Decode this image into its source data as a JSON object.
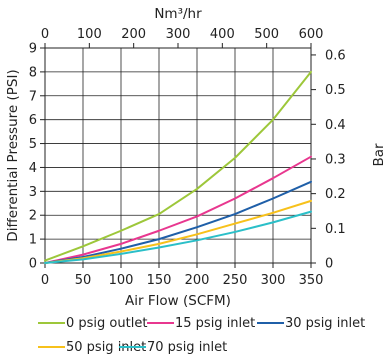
{
  "chart_data": {
    "type": "line",
    "xlabel": "Air Flow (SCFM)",
    "ylabel": "Differential Pressure (PSI)",
    "x2label": "Nm³/hr",
    "y2label": "Bar",
    "xlim": [
      0,
      350
    ],
    "ylim": [
      0,
      9
    ],
    "x2lim": [
      0,
      600
    ],
    "y2lim": [
      0,
      0.62
    ],
    "x_ticks": [
      "0",
      "50",
      "100",
      "150",
      "200",
      "250",
      "300",
      "350"
    ],
    "y_ticks": [
      "0",
      "1",
      "2",
      "3",
      "4",
      "5",
      "6",
      "7",
      "8",
      "9"
    ],
    "x2_ticks": [
      "0",
      "100",
      "200",
      "300",
      "400",
      "500",
      "600"
    ],
    "y2_ticks": [
      "0",
      "0.1",
      "0.2",
      "0.3",
      "0.4",
      "0.5",
      "0.6"
    ],
    "grid": true,
    "legend_position": "bottom",
    "series": [
      {
        "name": "0 psig outlet",
        "color": "#9dc73a",
        "x": [
          0,
          50,
          100,
          150,
          200,
          250,
          300,
          350
        ],
        "y": [
          0.1,
          0.7,
          1.35,
          2.05,
          3.1,
          4.4,
          6.0,
          8.0
        ]
      },
      {
        "name": "15 psig inlet",
        "color": "#e8378f",
        "x": [
          0,
          50,
          100,
          150,
          200,
          250,
          300,
          350
        ],
        "y": [
          0.0,
          0.35,
          0.8,
          1.35,
          1.95,
          2.7,
          3.55,
          4.45
        ]
      },
      {
        "name": "30 psig inlet",
        "color": "#1f5fa8",
        "x": [
          0,
          50,
          100,
          150,
          200,
          250,
          300,
          350
        ],
        "y": [
          0.0,
          0.25,
          0.6,
          1.0,
          1.5,
          2.05,
          2.7,
          3.4
        ]
      },
      {
        "name": "50 psig inlet",
        "color": "#f7c11b",
        "x": [
          0,
          50,
          100,
          150,
          200,
          250,
          300,
          350
        ],
        "y": [
          0.0,
          0.2,
          0.48,
          0.8,
          1.2,
          1.65,
          2.1,
          2.6
        ]
      },
      {
        "name": "70 psig inlet",
        "color": "#2bbfc8",
        "x": [
          0,
          50,
          100,
          150,
          200,
          250,
          300,
          350
        ],
        "y": [
          0.0,
          0.15,
          0.38,
          0.65,
          0.95,
          1.3,
          1.7,
          2.15
        ]
      }
    ]
  }
}
